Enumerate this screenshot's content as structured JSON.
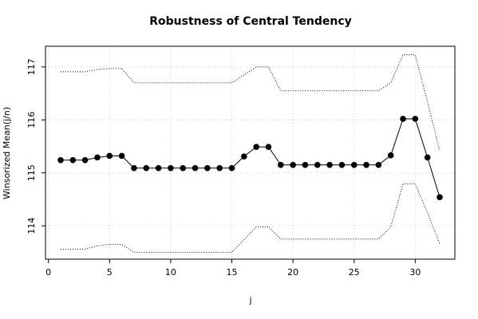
{
  "chart_data": {
    "type": "line",
    "title": "Robustness of Central Tendency",
    "xlabel": "j",
    "ylabel": "Winsorized Mean(j/n)",
    "x": [
      1,
      2,
      3,
      4,
      5,
      6,
      7,
      8,
      9,
      10,
      11,
      12,
      13,
      14,
      15,
      16,
      17,
      18,
      19,
      20,
      21,
      22,
      23,
      24,
      25,
      26,
      27,
      28,
      29,
      30,
      31,
      32
    ],
    "series": [
      {
        "color": "#000000",
        "style": "dotted",
        "markers": false,
        "values": [
          116.91,
          116.91,
          116.91,
          116.95,
          116.97,
          116.97,
          116.7,
          116.7,
          116.7,
          116.7,
          116.7,
          116.7,
          116.7,
          116.7,
          116.7,
          116.85,
          117.0,
          117.0,
          116.55,
          116.55,
          116.55,
          116.55,
          116.55,
          116.55,
          116.55,
          116.55,
          116.55,
          116.7,
          117.23,
          117.23,
          116.34,
          115.42
        ]
      },
      {
        "color": "#000000",
        "style": "solid",
        "markers": true,
        "values": [
          115.24,
          115.24,
          115.24,
          115.29,
          115.32,
          115.32,
          115.09,
          115.09,
          115.09,
          115.09,
          115.09,
          115.09,
          115.09,
          115.09,
          115.09,
          115.31,
          115.49,
          115.49,
          115.15,
          115.15,
          115.15,
          115.15,
          115.15,
          115.15,
          115.15,
          115.15,
          115.15,
          115.33,
          116.02,
          116.02,
          115.29,
          114.54
        ]
      },
      {
        "color": "#000000",
        "style": "dotted",
        "markers": false,
        "values": [
          113.56,
          113.56,
          113.56,
          113.62,
          113.65,
          113.65,
          113.5,
          113.5,
          113.5,
          113.5,
          113.5,
          113.5,
          113.5,
          113.5,
          113.5,
          113.74,
          113.98,
          113.98,
          113.75,
          113.75,
          113.75,
          113.75,
          113.75,
          113.75,
          113.75,
          113.75,
          113.75,
          113.98,
          114.79,
          114.79,
          114.25,
          113.66
        ]
      }
    ],
    "xlim": [
      -0.24,
      33.24
    ],
    "xticks": [
      0,
      5,
      10,
      15,
      20,
      25,
      30
    ],
    "ylim": [
      113.37,
      117.39
    ],
    "yticks": [
      114,
      115,
      116,
      117
    ],
    "grid": true
  }
}
